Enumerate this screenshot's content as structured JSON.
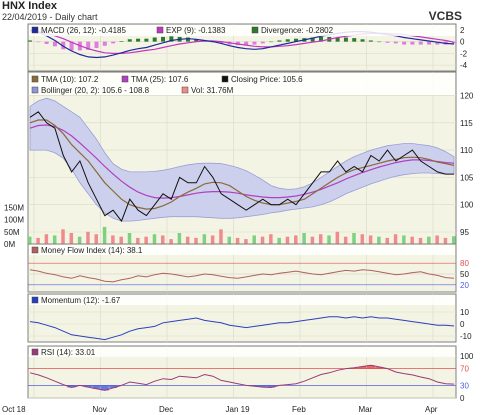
{
  "header": {
    "title": "HNX Index",
    "subtitle": "22/04/2019 - Daily chart",
    "brand": "VCBS"
  },
  "colors": {
    "panel_bg": "#f4f4e4",
    "border": "#808080",
    "grid": "#d9d9c8",
    "macd": "#1f2a9a",
    "ema": "#c236c2",
    "divergence_pos": "#2d7a2d",
    "divergence_neg": "#e07be0",
    "price": "#111111",
    "tma10": "#8a6a3a",
    "tma25": "#b040c0",
    "bollinger_fill": "#c9cdef",
    "bollinger_line": "#8f95d8",
    "vol_up": "#f08b8b",
    "vol_down": "#7fd07f",
    "mfi": "#b06060",
    "momentum": "#2a3fbf",
    "rsi": "#9b3a7a",
    "overbought": "#e05050",
    "oversold": "#5060e0"
  },
  "x_axis": {
    "labels": [
      "Oct 18",
      "Nov",
      "Dec",
      "Jan 19",
      "Feb",
      "Mar",
      "Apr"
    ]
  },
  "chart_data": [
    {
      "type": "bar",
      "panel": "macd",
      "legend": [
        {
          "name": "MACD (26, 12): -0.4185",
          "color": "#1f2a9a"
        },
        {
          "name": "EXP (9): -0.1383",
          "color": "#c236c2"
        },
        {
          "name": "Divergence: -0.2802",
          "color": "#2d7a2d"
        }
      ],
      "yticks": [
        "2",
        "0",
        "-2",
        "-4"
      ],
      "ylim": [
        -5,
        3
      ],
      "series": [
        {
          "name": "MACD",
          "values": [
            2.0,
            1.6,
            1.0,
            0.2,
            -0.8,
            -1.6,
            -2.2,
            -2.6,
            -2.7,
            -2.6,
            -2.3,
            -1.9,
            -1.5,
            -1.2,
            -1.0,
            -0.6,
            -0.2,
            0.2,
            0.4,
            0.5,
            0.4,
            0.2,
            0.0,
            -0.3,
            -0.7,
            -1.0,
            -1.2,
            -1.3,
            -1.2,
            -0.9,
            -0.6,
            -0.3,
            0.0,
            0.3,
            0.6,
            0.9,
            1.2,
            1.4,
            1.6,
            1.7,
            1.7,
            1.6,
            1.4,
            1.2,
            1.0,
            0.7,
            0.5,
            0.3,
            0.1,
            -0.1,
            -0.3,
            -0.4
          ]
        },
        {
          "name": "EXP",
          "values": [
            1.8,
            1.7,
            1.4,
            1.0,
            0.5,
            -0.1,
            -0.7,
            -1.2,
            -1.6,
            -1.9,
            -2.0,
            -2.0,
            -1.9,
            -1.7,
            -1.5,
            -1.3,
            -1.0,
            -0.7,
            -0.4,
            -0.2,
            0.0,
            0.1,
            0.1,
            0.0,
            -0.2,
            -0.4,
            -0.6,
            -0.8,
            -0.9,
            -0.9,
            -0.8,
            -0.7,
            -0.5,
            -0.3,
            -0.1,
            0.1,
            0.4,
            0.7,
            0.9,
            1.1,
            1.3,
            1.4,
            1.4,
            1.4,
            1.3,
            1.2,
            1.0,
            0.8,
            0.6,
            0.4,
            0.2,
            -0.1
          ]
        },
        {
          "name": "Divergence",
          "values": [
            0.2,
            -0.1,
            -0.4,
            -0.8,
            -1.3,
            -1.5,
            -1.5,
            -1.4,
            -1.1,
            -0.7,
            -0.3,
            0.1,
            0.4,
            0.5,
            0.5,
            0.7,
            0.8,
            0.9,
            0.8,
            0.7,
            0.4,
            0.1,
            -0.1,
            -0.3,
            -0.5,
            -0.6,
            -0.6,
            -0.5,
            -0.3,
            0.0,
            0.2,
            0.4,
            0.5,
            0.6,
            0.7,
            0.8,
            0.8,
            0.7,
            0.7,
            0.6,
            0.4,
            0.2,
            0.0,
            -0.2,
            -0.3,
            -0.5,
            -0.5,
            -0.5,
            -0.5,
            -0.5,
            -0.5,
            -0.3
          ]
        }
      ]
    },
    {
      "type": "line",
      "panel": "price",
      "legend": [
        {
          "name": "TMA (10): 107.2",
          "color": "#8a6a3a"
        },
        {
          "name": "TMA (25): 107.6",
          "color": "#b040c0"
        },
        {
          "name": "Closing Price: 105.6",
          "color": "#111111"
        },
        {
          "name": "Bollinger (20, 2): 105.6 - 108.8",
          "color": "#8f95d8"
        },
        {
          "name": "Vol: 31.76M",
          "color": "#f08b8b"
        }
      ],
      "yticks": [
        "120",
        "115",
        "110",
        "105",
        "100",
        "95"
      ],
      "ylim": [
        95,
        121
      ],
      "vol_ticks": [
        "150M",
        "100M",
        "50M",
        "0M"
      ],
      "vol_max": 180,
      "series": [
        {
          "name": "Closing Price",
          "values": [
            116,
            117,
            115,
            114,
            109,
            106,
            108,
            104,
            101,
            98,
            99,
            97,
            101,
            99,
            98,
            100,
            102,
            101,
            105,
            104,
            104,
            107,
            105,
            102,
            101,
            100,
            99,
            100,
            101,
            100,
            100,
            101,
            100,
            102,
            104,
            106,
            106,
            108,
            106,
            107,
            106,
            109,
            108,
            110,
            108,
            109,
            110,
            108,
            107,
            106,
            105.6,
            105.6
          ]
        },
        {
          "name": "TMA (10)",
          "values": [
            115,
            115.5,
            115.5,
            114.5,
            113,
            111,
            109.5,
            108,
            106,
            104,
            102.5,
            101,
            100,
            99.5,
            99.2,
            99.3,
            99.8,
            100.5,
            101.5,
            102.3,
            103,
            103.8,
            104.1,
            104,
            103.5,
            102.5,
            101.5,
            100.8,
            100.3,
            100,
            100,
            100.3,
            100.6,
            101,
            102,
            103,
            104,
            105,
            105.8,
            106.4,
            106.8,
            107.2,
            107.6,
            108,
            108.3,
            108.6,
            108.7,
            108.6,
            108.3,
            107.8,
            107.5,
            107.2
          ]
        },
        {
          "name": "TMA (25)",
          "values": [
            114,
            114.5,
            114.6,
            114.3,
            113.6,
            112.6,
            111.3,
            109.9,
            108.5,
            107,
            105.6,
            104.3,
            103.2,
            102.3,
            101.7,
            101.3,
            101.2,
            101.3,
            101.5,
            101.8,
            102.1,
            102.3,
            102.4,
            102.4,
            102.3,
            102.1,
            101.8,
            101.6,
            101.4,
            101.3,
            101.3,
            101.4,
            101.6,
            101.9,
            102.3,
            102.8,
            103.4,
            104,
            104.7,
            105.3,
            105.9,
            106.4,
            106.9,
            107.3,
            107.7,
            108,
            108.2,
            108.2,
            108.1,
            107.9,
            107.7,
            107.6
          ]
        },
        {
          "name": "Bollinger Upper",
          "values": [
            118,
            119,
            119.5,
            119,
            118,
            117,
            116,
            114,
            112,
            109.5,
            107.5,
            106.5,
            106,
            106,
            106,
            106.1,
            106.3,
            106.6,
            107,
            107.3,
            107.5,
            107.6,
            107.6,
            107.5,
            107.2,
            106.8,
            106.2,
            105.4,
            104.5,
            103.5,
            103,
            102.8,
            102.9,
            103.3,
            104,
            105,
            106,
            107,
            108,
            108.8,
            109.4,
            110,
            110.4,
            110.8,
            111,
            111.2,
            111.2,
            111,
            110.8,
            110.4,
            109.7,
            108.8
          ]
        },
        {
          "name": "Bollinger Lower",
          "values": [
            110,
            110,
            110,
            109.5,
            108.5,
            106.5,
            104,
            102,
            100,
            98.5,
            97.5,
            97,
            97,
            97.1,
            97.3,
            97.5,
            97.7,
            97.8,
            97.8,
            97.8,
            97.8,
            97.7,
            97.6,
            97.5,
            97.5,
            97.6,
            97.8,
            98,
            98.2,
            98.5,
            98.7,
            99,
            99.2,
            99.4,
            99.6,
            100,
            100.5,
            101.2,
            102,
            102.6,
            103.2,
            103.8,
            104.3,
            104.8,
            105.2,
            105.5,
            105.7,
            105.8,
            105.8,
            105.7,
            105.6,
            105.6
          ]
        },
        {
          "name": "Vol",
          "values": [
            30,
            25,
            40,
            35,
            60,
            45,
            30,
            50,
            40,
            70,
            35,
            30,
            45,
            25,
            30,
            40,
            35,
            20,
            45,
            30,
            25,
            40,
            35,
            60,
            30,
            25,
            20,
            35,
            30,
            40,
            25,
            30,
            35,
            45,
            30,
            40,
            35,
            50,
            30,
            45,
            40,
            35,
            30,
            25,
            40,
            35,
            30,
            25,
            30,
            35,
            25,
            31.76
          ]
        }
      ]
    },
    {
      "type": "line",
      "panel": "mfi",
      "legend": [
        {
          "name": "Money Flow Index (14): 38.1",
          "color": "#b06060"
        }
      ],
      "yticks": [
        "80",
        "50",
        "20"
      ],
      "ylim": [
        0,
        100
      ],
      "series": [
        {
          "name": "Money Flow Index",
          "values": [
            62,
            58,
            52,
            48,
            42,
            38,
            45,
            40,
            36,
            30,
            28,
            34,
            38,
            45,
            42,
            48,
            52,
            50,
            46,
            42,
            45,
            50,
            48,
            44,
            40,
            38,
            42,
            46,
            50,
            48,
            52,
            55,
            58,
            54,
            50,
            48,
            52,
            56,
            60,
            58,
            62,
            60,
            56,
            52,
            48,
            50,
            54,
            56,
            50,
            46,
            40,
            38.1
          ]
        }
      ]
    },
    {
      "type": "line",
      "panel": "momentum",
      "legend": [
        {
          "name": "Momentum (12): -1.67",
          "color": "#2a3fbf"
        }
      ],
      "yticks": [
        "10",
        "0",
        "-10"
      ],
      "ylim": [
        -15,
        15
      ],
      "series": [
        {
          "name": "Momentum",
          "values": [
            2,
            1,
            -1,
            -3,
            -6,
            -9,
            -10,
            -11,
            -12,
            -13,
            -11,
            -9,
            -6,
            -4,
            -3,
            -2,
            1,
            2,
            3,
            4,
            5,
            3,
            2,
            1,
            -1,
            -2,
            -3,
            -2,
            -1,
            0,
            1,
            1,
            2,
            3,
            4,
            5,
            6,
            6,
            5,
            6,
            5,
            6,
            5,
            5,
            4,
            3,
            2,
            1,
            0,
            -1,
            -1,
            -1.67
          ]
        }
      ]
    },
    {
      "type": "line",
      "panel": "rsi",
      "legend": [
        {
          "name": "RSI (14): 33.01",
          "color": "#9b3a7a"
        }
      ],
      "yticks": [
        "100",
        "70",
        "30",
        "0"
      ],
      "ylim": [
        0,
        100
      ],
      "series": [
        {
          "name": "RSI",
          "values": [
            60,
            55,
            48,
            40,
            32,
            25,
            30,
            26,
            22,
            18,
            24,
            30,
            38,
            35,
            32,
            40,
            46,
            44,
            52,
            50,
            48,
            56,
            52,
            42,
            38,
            34,
            30,
            28,
            26,
            25,
            30,
            32,
            34,
            40,
            48,
            56,
            60,
            66,
            70,
            72,
            75,
            78,
            74,
            70,
            62,
            58,
            55,
            50,
            46,
            38,
            34,
            33.01
          ]
        }
      ]
    }
  ]
}
